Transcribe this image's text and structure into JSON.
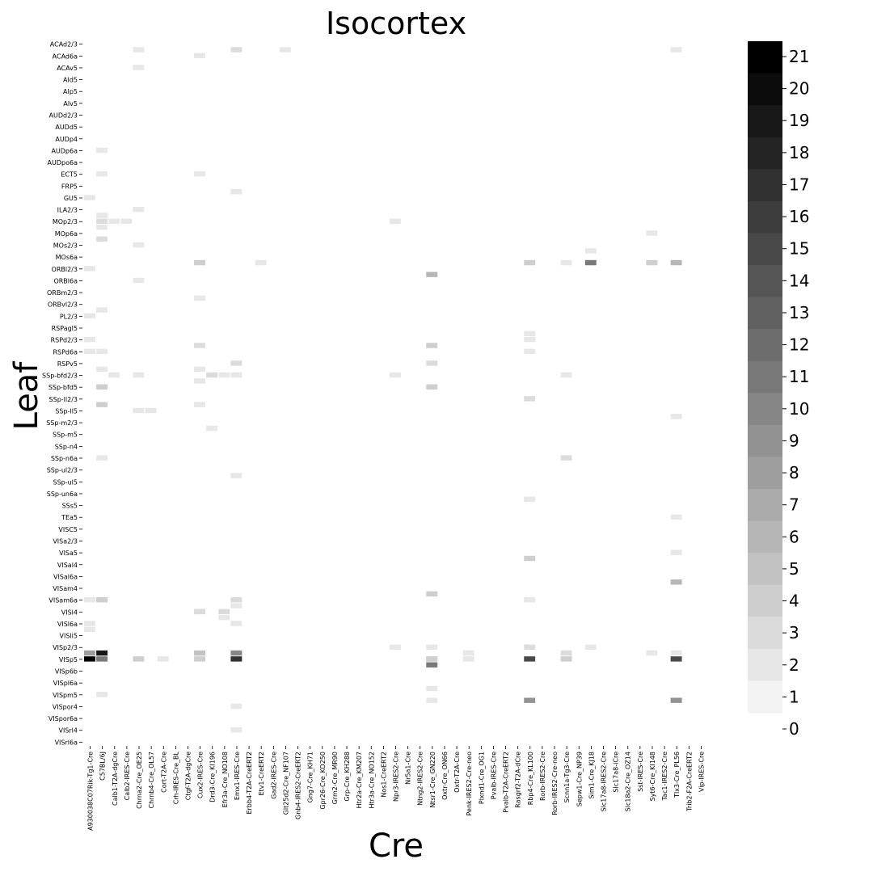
{
  "chart_data": {
    "type": "heatmap",
    "title": "Isocortex",
    "xlabel": "Cre",
    "ylabel": "Leaf",
    "x_tick_labels": [
      "A930038C07Rik-Tg1-Cre",
      "C57BL/6J",
      "Calb1-T2A-dgCre",
      "Calb2-IRES-Cre",
      "Chrna2-Cre_OE25",
      "Chrnb4-Cre_OL57",
      "Cort-T2A-Cre",
      "Crh-IRES-Cre_BL",
      "Ctgf-T2A-dgCre",
      "Cux2-IRES-Cre",
      "Drd3-Cre_KI196",
      "Efr3a-Cre_NO108",
      "Emx1-IRES-Cre",
      "Erbb4-T2A-CreERT2",
      "Etv1-CreERT2",
      "Gad2-IRES-Cre",
      "Glt25d2-Cre_NF107",
      "Gnb4-IRES2-CreERT2",
      "Gng7-Cre_KH71",
      "Gpr26-Cre_KO250",
      "Grm2-Cre_MR90",
      "Grp-Cre_KH288",
      "Htr2a-Cre_KM207",
      "Htr3a-Cre_NO152",
      "Nos1-CreERT2",
      "Npr3-IRES2-Cre",
      "Nr5a1-Cre",
      "Ntng2-IRES2-Cre",
      "Ntsr1-Cre_GN220",
      "Oxtr-Cre_ON66",
      "Oxtr-T2A-Cre",
      "Penk-IRES2-Cre-neo",
      "Plxnd1-Cre_OG1",
      "Pvalb-IRES-Cre",
      "Pvalb-T2A-CreERT2",
      "Rasgrf2-T2A-dCre",
      "Rbp4-Cre_KL100",
      "Rorb-IRES2-Cre",
      "Rorb-IRES2-Cre-neo",
      "Scnn1a-Tg3-Cre",
      "Sepw1-Cre_NP39",
      "Sim1-Cre_KJ18",
      "Slc17a8-IRES2-Cre",
      "Slc17a8-iCre",
      "Slc18a2-Cre_OZ14",
      "Sst-IRES-Cre",
      "Syt6-Cre_KI148",
      "Tac1-IRES2-Cre",
      "Tlx3-Cre_PL56",
      "Trib2-F2A-CreERT2",
      "Vip-IRES-Cre"
    ],
    "y_tick_labels": [
      "ACAd2/3",
      "ACAd6a",
      "ACAv5",
      "AId5",
      "AIp5",
      "AIv5",
      "AUDd2/3",
      "AUDd5",
      "AUDp4",
      "AUDp6a",
      "AUDpo6a",
      "ECT5",
      "FRP5",
      "GU5",
      "ILA2/3",
      "MOp2/3",
      "MOp6a",
      "MOs2/3",
      "MOs6a",
      "ORBl2/3",
      "ORBl6a",
      "ORBm2/3",
      "ORBvl2/3",
      "PL2/3",
      "RSPagl5",
      "RSPd2/3",
      "RSPd6a",
      "RSPv5",
      "SSp-bfd2/3",
      "SSp-bfd5",
      "SSp-ll2/3",
      "SSp-ll5",
      "SSp-m2/3",
      "SSp-m5",
      "SSp-n4",
      "SSp-n6a",
      "SSp-ul2/3",
      "SSp-ul5",
      "SSp-un6a",
      "SSs5",
      "TEa5",
      "VISC5",
      "VISa2/3",
      "VISa5",
      "VISal4",
      "VISal6a",
      "VISam4",
      "VISam6a",
      "VISl4",
      "VISl6a",
      "VISli5",
      "VISp2/3",
      "VISp5",
      "VISp6b",
      "VISpl6a",
      "VISpm5",
      "VISpor4",
      "VISpor6a",
      "VISrl4",
      "VISrl6a"
    ],
    "n_cols": 51,
    "n_rows": 119,
    "vmin": 0,
    "vmax": 21,
    "colorbar_ticks": [
      0,
      1,
      2,
      3,
      4,
      5,
      6,
      7,
      8,
      9,
      10,
      11,
      12,
      13,
      14,
      15,
      16,
      17,
      18,
      19,
      20,
      21
    ],
    "colormap": "Greys",
    "grid": false,
    "colorbar_position": "right",
    "nonzero_cells": [
      [
        0,
        104,
        21
      ],
      [
        0,
        103,
        8
      ],
      [
        0,
        98,
        2
      ],
      [
        0,
        99,
        2
      ],
      [
        0,
        46,
        2
      ],
      [
        0,
        50,
        2
      ],
      [
        0,
        52,
        2
      ],
      [
        0,
        26,
        2
      ],
      [
        0,
        38,
        2
      ],
      [
        0,
        94,
        2
      ],
      [
        1,
        104,
        11
      ],
      [
        1,
        103,
        19
      ],
      [
        1,
        94,
        4
      ],
      [
        1,
        61,
        4
      ],
      [
        1,
        58,
        4
      ],
      [
        1,
        45,
        2
      ],
      [
        1,
        30,
        3
      ],
      [
        1,
        29,
        2
      ],
      [
        1,
        22,
        2
      ],
      [
        1,
        31,
        2
      ],
      [
        1,
        33,
        3
      ],
      [
        1,
        52,
        2
      ],
      [
        1,
        70,
        2
      ],
      [
        1,
        110,
        2
      ],
      [
        1,
        18,
        2
      ],
      [
        1,
        55,
        2
      ],
      [
        2,
        30,
        2
      ],
      [
        2,
        56,
        2
      ],
      [
        3,
        30,
        2
      ],
      [
        4,
        104,
        4
      ],
      [
        4,
        62,
        2
      ],
      [
        4,
        56,
        2
      ],
      [
        4,
        28,
        2
      ],
      [
        4,
        1,
        2
      ],
      [
        4,
        4,
        2
      ],
      [
        4,
        34,
        2
      ],
      [
        4,
        40,
        2
      ],
      [
        5,
        62,
        2
      ],
      [
        6,
        104,
        2
      ],
      [
        9,
        103,
        5
      ],
      [
        9,
        104,
        4
      ],
      [
        9,
        96,
        3
      ],
      [
        9,
        51,
        3
      ],
      [
        9,
        37,
        4
      ],
      [
        9,
        22,
        2
      ],
      [
        9,
        2,
        2
      ],
      [
        9,
        43,
        2
      ],
      [
        9,
        96,
        3
      ],
      [
        9,
        55,
        2
      ],
      [
        9,
        57,
        2
      ],
      [
        9,
        61,
        2
      ],
      [
        10,
        56,
        3
      ],
      [
        10,
        65,
        2
      ],
      [
        11,
        56,
        2
      ],
      [
        11,
        96,
        3
      ],
      [
        11,
        97,
        2
      ],
      [
        12,
        103,
        10
      ],
      [
        12,
        104,
        17
      ],
      [
        12,
        54,
        3
      ],
      [
        12,
        25,
        2
      ],
      [
        12,
        1,
        3
      ],
      [
        12,
        56,
        2
      ],
      [
        12,
        94,
        3
      ],
      [
        12,
        95,
        2
      ],
      [
        12,
        98,
        2
      ],
      [
        12,
        73,
        2
      ],
      [
        12,
        112,
        2
      ],
      [
        12,
        116,
        2
      ],
      [
        14,
        37,
        2
      ],
      [
        16,
        1,
        2
      ],
      [
        25,
        30,
        2
      ],
      [
        25,
        56,
        2
      ],
      [
        25,
        102,
        2
      ],
      [
        28,
        104,
        4
      ],
      [
        28,
        105,
        11
      ],
      [
        28,
        102,
        2
      ],
      [
        28,
        39,
        6
      ],
      [
        28,
        51,
        4
      ],
      [
        28,
        54,
        3
      ],
      [
        28,
        58,
        4
      ],
      [
        28,
        93,
        4
      ],
      [
        28,
        104,
        4
      ],
      [
        28,
        109,
        2
      ],
      [
        28,
        111,
        2
      ],
      [
        31,
        104,
        2
      ],
      [
        31,
        103,
        2
      ],
      [
        33,
        123,
        2
      ],
      [
        36,
        104,
        15
      ],
      [
        36,
        102,
        3
      ],
      [
        36,
        37,
        4
      ],
      [
        36,
        60,
        3
      ],
      [
        36,
        87,
        4
      ],
      [
        36,
        111,
        9
      ],
      [
        36,
        94,
        2
      ],
      [
        36,
        49,
        2
      ],
      [
        36,
        50,
        2
      ],
      [
        36,
        52,
        2
      ],
      [
        36,
        77,
        2
      ],
      [
        39,
        103,
        3
      ],
      [
        39,
        104,
        4
      ],
      [
        39,
        70,
        3
      ],
      [
        39,
        56,
        2
      ],
      [
        39,
        37,
        2
      ],
      [
        41,
        37,
        11
      ],
      [
        41,
        102,
        2
      ],
      [
        41,
        35,
        2
      ],
      [
        46,
        103,
        2
      ],
      [
        46,
        37,
        4
      ],
      [
        46,
        32,
        2
      ],
      [
        48,
        104,
        15
      ],
      [
        48,
        91,
        6
      ],
      [
        48,
        37,
        6
      ],
      [
        48,
        63,
        2
      ],
      [
        48,
        1,
        2
      ],
      [
        48,
        80,
        2
      ],
      [
        48,
        103,
        2
      ],
      [
        48,
        111,
        9
      ],
      [
        48,
        86,
        2
      ]
    ]
  }
}
